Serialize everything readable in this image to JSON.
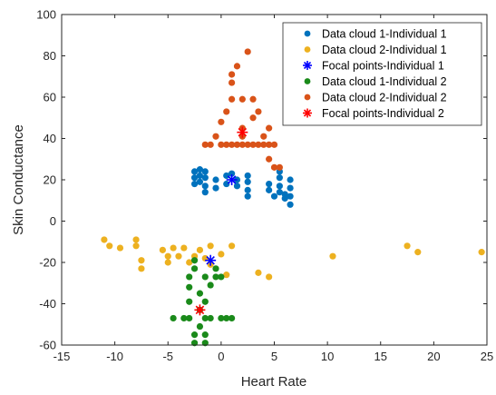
{
  "chart_data": {
    "type": "scatter",
    "xlabel": "Heart Rate",
    "ylabel": "Skin Conductance",
    "xlim": [
      -15,
      25
    ],
    "ylim": [
      -60,
      100
    ],
    "xticks": [
      -15,
      -10,
      -5,
      0,
      5,
      10,
      15,
      20,
      25
    ],
    "yticks": [
      -60,
      -40,
      -20,
      0,
      20,
      40,
      60,
      80,
      100
    ],
    "grid": false,
    "legend_position": "top-right",
    "series": [
      {
        "name": "Data cloud 1-Individual 1",
        "marker": "dot",
        "color": "#0072BD",
        "points": [
          [
            -2.5,
            24
          ],
          [
            -2.5,
            21
          ],
          [
            -2.5,
            18
          ],
          [
            -2,
            25
          ],
          [
            -2,
            22
          ],
          [
            -2,
            19
          ],
          [
            -1.5,
            24
          ],
          [
            -1.5,
            21
          ],
          [
            -1.5,
            17
          ],
          [
            -1.5,
            14
          ],
          [
            -0.5,
            20
          ],
          [
            -0.5,
            16
          ],
          [
            0.5,
            22
          ],
          [
            0.5,
            18
          ],
          [
            1,
            23
          ],
          [
            1.5,
            20
          ],
          [
            1.5,
            17
          ],
          [
            2.5,
            22
          ],
          [
            2.5,
            19
          ],
          [
            2.5,
            15
          ],
          [
            2.5,
            12
          ],
          [
            4.5,
            18
          ],
          [
            4.5,
            15
          ],
          [
            5,
            12
          ],
          [
            5.5,
            24
          ],
          [
            5.5,
            21
          ],
          [
            5.5,
            17
          ],
          [
            5.5,
            14
          ],
          [
            6,
            11
          ],
          [
            6,
            13
          ],
          [
            6.5,
            20
          ],
          [
            6.5,
            16
          ],
          [
            6.5,
            12
          ],
          [
            6.5,
            8
          ]
        ]
      },
      {
        "name": "Data cloud 2-Individual 1",
        "marker": "dot",
        "color": "#EDB120",
        "points": [
          [
            -11,
            -9
          ],
          [
            -10.5,
            -12
          ],
          [
            -9.5,
            -13
          ],
          [
            -8,
            -9
          ],
          [
            -8,
            -12
          ],
          [
            -7.5,
            -19
          ],
          [
            -7.5,
            -23
          ],
          [
            -5.5,
            -14
          ],
          [
            -5,
            -17
          ],
          [
            -5,
            -20
          ],
          [
            -4.5,
            -13
          ],
          [
            -4,
            -17
          ],
          [
            -3.5,
            -13
          ],
          [
            -3,
            -20
          ],
          [
            -2.5,
            -17
          ],
          [
            -2,
            -14
          ],
          [
            -1.5,
            -18
          ],
          [
            -1,
            -21
          ],
          [
            -1,
            -12
          ],
          [
            0,
            -16
          ],
          [
            0.5,
            -26
          ],
          [
            1,
            -12
          ],
          [
            3.5,
            -25
          ],
          [
            4.5,
            -27
          ],
          [
            10.5,
            -17
          ],
          [
            17.5,
            -12
          ],
          [
            18.5,
            -15
          ],
          [
            24.5,
            -15
          ]
        ]
      },
      {
        "name": "Focal points-Individual 1",
        "marker": "star",
        "color": "#0000FF",
        "points": [
          [
            -1,
            -19
          ],
          [
            1,
            20
          ]
        ]
      },
      {
        "name": "Data cloud 1-Individual 2",
        "marker": "dot",
        "color": "#1A8A1A",
        "points": [
          [
            -4.5,
            -47
          ],
          [
            -3.5,
            -47
          ],
          [
            -3,
            -32
          ],
          [
            -3,
            -27
          ],
          [
            -3,
            -39
          ],
          [
            -3,
            -47
          ],
          [
            -2.5,
            -55
          ],
          [
            -2.5,
            -59
          ],
          [
            -2.5,
            -19
          ],
          [
            -2.5,
            -23
          ],
          [
            -2,
            -43
          ],
          [
            -2,
            -51
          ],
          [
            -2,
            -35
          ],
          [
            -1.5,
            -27
          ],
          [
            -1.5,
            -39
          ],
          [
            -1.5,
            -47
          ],
          [
            -1.5,
            -55
          ],
          [
            -1.5,
            -59
          ],
          [
            -1,
            -31
          ],
          [
            -1,
            -47
          ],
          [
            -0.5,
            -23
          ],
          [
            -0.5,
            -27
          ],
          [
            0,
            -27
          ],
          [
            0,
            -47
          ],
          [
            0.5,
            -47
          ],
          [
            1,
            -47
          ]
        ]
      },
      {
        "name": "Data cloud 2-Individual 2",
        "marker": "dot",
        "color": "#D95319",
        "points": [
          [
            -1.5,
            37
          ],
          [
            -1,
            37
          ],
          [
            0,
            37
          ],
          [
            0.5,
            37
          ],
          [
            1,
            37
          ],
          [
            1.5,
            37
          ],
          [
            2,
            37
          ],
          [
            2.5,
            37
          ],
          [
            3,
            37
          ],
          [
            3.5,
            37
          ],
          [
            4,
            37
          ],
          [
            4.5,
            37
          ],
          [
            5,
            37
          ],
          [
            -0.5,
            41
          ],
          [
            0,
            48
          ],
          [
            0.5,
            53
          ],
          [
            1,
            59
          ],
          [
            1,
            67
          ],
          [
            1,
            71
          ],
          [
            1.5,
            75
          ],
          [
            2,
            59
          ],
          [
            2,
            45
          ],
          [
            2.5,
            82
          ],
          [
            3,
            59
          ],
          [
            3,
            50
          ],
          [
            3.5,
            53
          ],
          [
            4,
            41
          ],
          [
            4.5,
            45
          ],
          [
            4.5,
            30
          ],
          [
            5,
            26
          ],
          [
            5.5,
            26
          ],
          [
            2,
            41
          ]
        ]
      },
      {
        "name": "Focal points-Individual 2",
        "marker": "star",
        "color": "#FF0000",
        "points": [
          [
            -2,
            -43
          ],
          [
            2,
            43
          ]
        ]
      }
    ]
  }
}
